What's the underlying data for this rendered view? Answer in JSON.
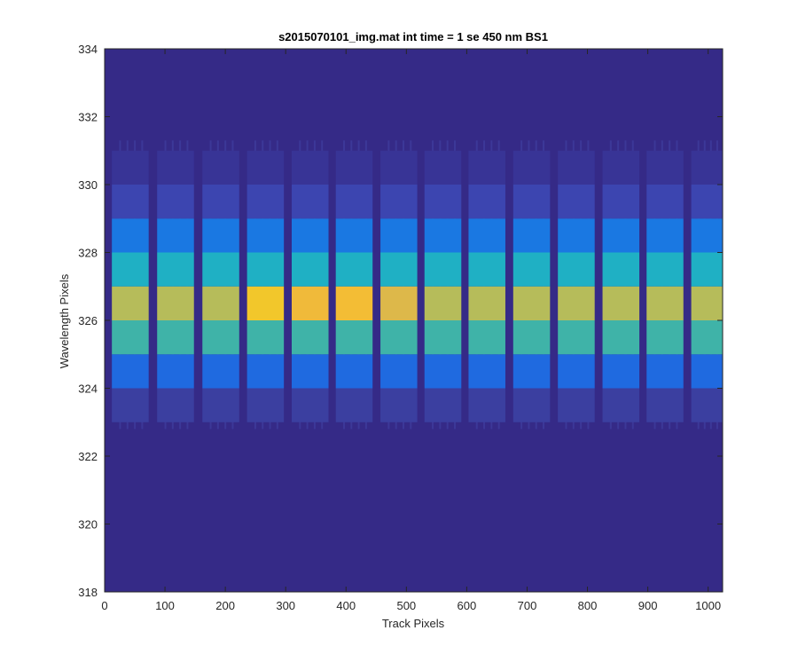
{
  "chart_data": {
    "type": "heatmap",
    "title": "s2015070101_img.mat int time = 1 se  450 nm BS1",
    "xlabel": "Track Pixels",
    "ylabel": "Wavelength Pixels",
    "xlim": [
      0,
      1024
    ],
    "ylim": [
      318,
      334
    ],
    "xticks": [
      0,
      100,
      200,
      300,
      400,
      500,
      600,
      700,
      800,
      900,
      1000
    ],
    "yticks": [
      318,
      320,
      322,
      324,
      326,
      328,
      330,
      332,
      334
    ],
    "grid": false,
    "colormap": "parula",
    "background_color": "#352a87",
    "tracks": [
      {
        "x_start": 12,
        "x_end": 73
      },
      {
        "x_start": 87,
        "x_end": 148
      },
      {
        "x_start": 162,
        "x_end": 223
      },
      {
        "x_start": 236,
        "x_end": 297
      },
      {
        "x_start": 310,
        "x_end": 371
      },
      {
        "x_start": 383,
        "x_end": 444
      },
      {
        "x_start": 457,
        "x_end": 518
      },
      {
        "x_start": 530,
        "x_end": 591
      },
      {
        "x_start": 603,
        "x_end": 664
      },
      {
        "x_start": 677,
        "x_end": 738
      },
      {
        "x_start": 751,
        "x_end": 812
      },
      {
        "x_start": 825,
        "x_end": 886
      },
      {
        "x_start": 898,
        "x_end": 959
      },
      {
        "x_start": 972,
        "x_end": 1024
      }
    ],
    "rows": [
      {
        "y_from": 323,
        "y_to": 324,
        "color": "#3b3fa0"
      },
      {
        "y_from": 324,
        "y_to": 325,
        "color": "#1f6ae0"
      },
      {
        "y_from": 325,
        "y_to": 326,
        "color": "#3fb3a8"
      },
      {
        "y_from": 326,
        "y_to": 327,
        "color": "#b6bc5a"
      },
      {
        "y_from": 327,
        "y_to": 328,
        "color": "#1fb0c4"
      },
      {
        "y_from": 328,
        "y_to": 329,
        "color": "#1a78e2"
      },
      {
        "y_from": 329,
        "y_to": 330,
        "color": "#3c45b0"
      },
      {
        "y_from": 330,
        "y_to": 331,
        "color": "#383496"
      }
    ],
    "peak_color_overrides": [
      {
        "track": 3,
        "color": "#f2c72b"
      },
      {
        "track": 4,
        "color": "#f0ba3a"
      },
      {
        "track": 5,
        "color": "#f3bd35"
      },
      {
        "track": 6,
        "color": "#ddb84a"
      }
    ]
  }
}
